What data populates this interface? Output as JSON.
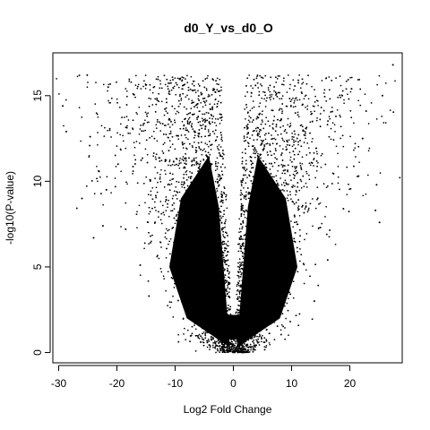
{
  "chart_data": {
    "type": "scatter",
    "title": "d0_Y_vs_d0_O",
    "xlabel": "Log2 Fold Change",
    "ylabel": "-log10(P-value)",
    "xlim": [
      -31,
      29
    ],
    "ylim": [
      -0.6,
      17.5
    ],
    "x_ticks": [
      -30,
      -20,
      -10,
      0,
      10,
      20
    ],
    "y_ticks": [
      0,
      5,
      10,
      15
    ],
    "grid": false,
    "legend": "none",
    "marker_color": "#000000",
    "series": [
      {
        "points": [
          [
            27.4,
            16.8
          ],
          [
            -25.1,
            16.2
          ],
          [
            -29.3,
            14.4
          ],
          [
            -28.7,
            12.9
          ],
          [
            -24.6,
            12.6
          ],
          [
            -26.0,
            9.0
          ],
          [
            -24.0,
            6.7
          ],
          [
            25.6,
            15.0
          ],
          [
            24.6,
            9.8
          ],
          [
            25.1,
            7.6
          ],
          [
            24.4,
            8.3
          ],
          [
            22.8,
            14.1
          ],
          [
            3.8,
            15.6
          ],
          [
            -21.5,
            15.5
          ],
          [
            -17.2,
            15.1
          ],
          [
            18.7,
            15.0
          ],
          [
            20.3,
            15.4
          ],
          [
            -19.8,
            11.0
          ],
          [
            -21.8,
            9.5
          ],
          [
            -22.4,
            7.4
          ],
          [
            21.5,
            10.3
          ],
          [
            22.2,
            12.5
          ],
          [
            -18.5,
            7.2
          ],
          [
            18.9,
            8.4
          ],
          [
            -16.0,
            5.1
          ],
          [
            16.2,
            5.4
          ],
          [
            -14.5,
            3.3
          ],
          [
            13.9,
            3.0
          ]
        ]
      }
    ]
  }
}
